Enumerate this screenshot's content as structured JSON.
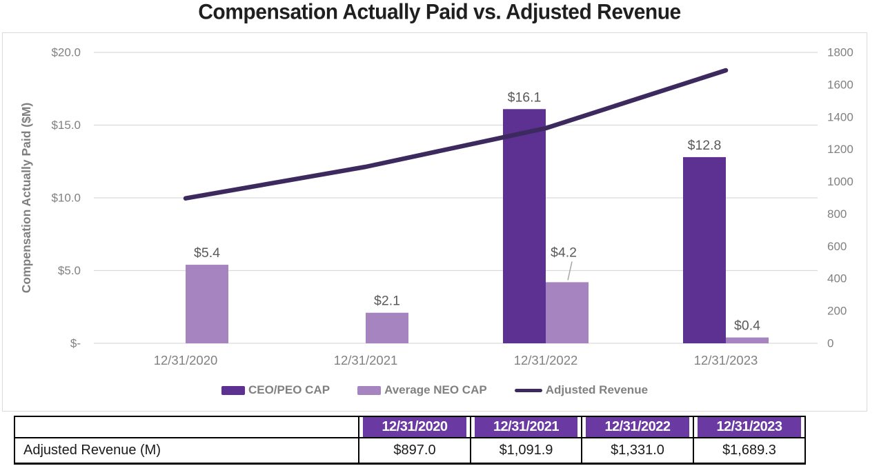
{
  "chart_data": {
    "type": "combo-bar-line",
    "title": "Compensation Actually Paid vs. Adjusted Revenue",
    "categories": [
      "12/31/2020",
      "12/31/2021",
      "12/31/2022",
      "12/31/2023"
    ],
    "bar_series": [
      {
        "name": "CEO/PEO CAP",
        "color": "#5c3192",
        "axis": "left",
        "values": [
          null,
          null,
          16.1,
          12.8
        ],
        "labels": [
          "",
          "",
          "$16.1",
          "$12.8"
        ],
        "callout": [
          false,
          false,
          false,
          false
        ]
      },
      {
        "name": "Average NEO CAP",
        "color": "#a684bf",
        "axis": "left",
        "values": [
          5.4,
          2.1,
          4.2,
          0.4
        ],
        "labels": [
          "$5.4",
          "$2.1",
          "$4.2",
          "$0.4"
        ],
        "callout": [
          false,
          false,
          true,
          false
        ]
      }
    ],
    "line_series": {
      "name": "Adjusted Revenue",
      "color": "#3c2a5f",
      "axis": "right",
      "values": [
        897.0,
        1091.9,
        1331.0,
        1689.3
      ]
    },
    "left_axis": {
      "title": "Compensation Actually Paid ($M)",
      "ticks": [
        "$20.0",
        "$15.0",
        "$10.0",
        "$5.0",
        "$-"
      ],
      "min": 0,
      "max": 20
    },
    "right_axis": {
      "ticks": [
        "1800",
        "1600",
        "1400",
        "1200",
        "1000",
        "800",
        "600",
        "400",
        "200",
        "0"
      ],
      "min": 0,
      "max": 1800
    },
    "legend": [
      {
        "label": "CEO/PEO CAP",
        "swatch": "bar",
        "color": "#5c3192"
      },
      {
        "label": "Average NEO CAP",
        "swatch": "bar",
        "color": "#a684bf"
      },
      {
        "label": "Adjusted Revenue",
        "swatch": "line",
        "color": "#3c2a5f"
      }
    ],
    "grid": true,
    "colors": {
      "data_label": "#595959",
      "axis_text": "#808080",
      "axis_title": "#7f7f7f",
      "gridline": "#d9d9d9",
      "callout_leader": "#a6a6a6"
    }
  },
  "table": {
    "header_cols": [
      "12/31/2020",
      "12/31/2021",
      "12/31/2022",
      "12/31/2023"
    ],
    "rows": [
      {
        "label": "Adjusted Revenue (M)",
        "values": [
          "$897.0",
          "$1,091.9",
          "$1,331.0",
          "$1,689.3"
        ]
      }
    ],
    "header_bg": "#6a3aa2"
  }
}
